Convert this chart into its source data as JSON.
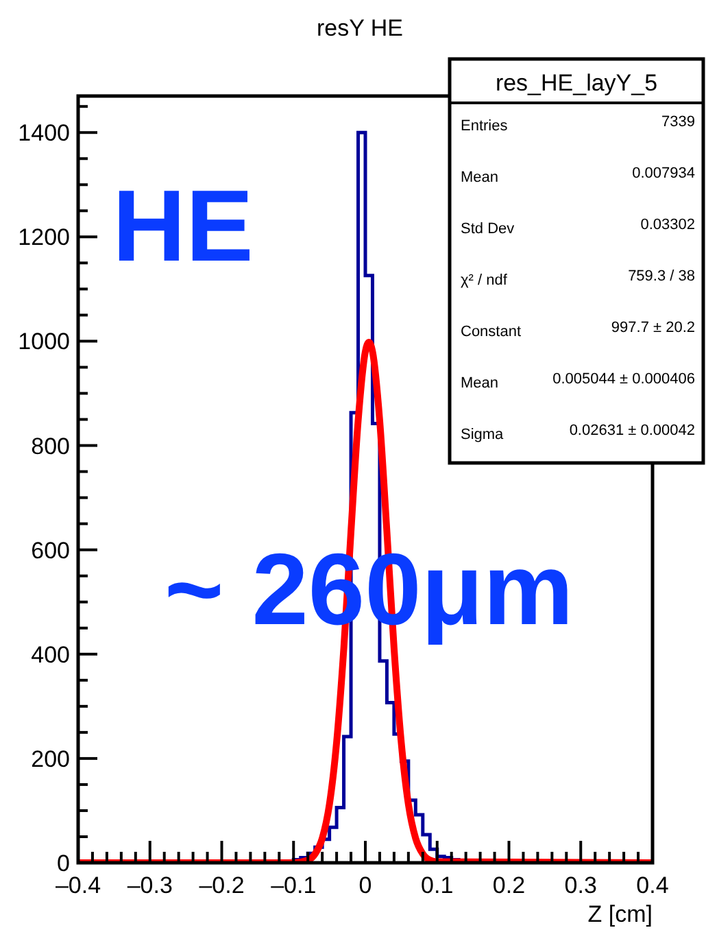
{
  "chart_data": {
    "type": "histogram",
    "title": "resY HE",
    "xlabel": "Z [cm]",
    "xlim": [
      -0.4,
      0.4
    ],
    "ylim": [
      0,
      1470
    ],
    "xticks": [
      {
        "value": -0.4,
        "label": "–0.4"
      },
      {
        "value": -0.38,
        "label": null
      },
      {
        "value": -0.36,
        "label": null
      },
      {
        "value": -0.34,
        "label": null
      },
      {
        "value": -0.32,
        "label": null
      },
      {
        "value": -0.3,
        "label": "–0.3"
      },
      {
        "value": -0.28,
        "label": null
      },
      {
        "value": -0.26,
        "label": null
      },
      {
        "value": -0.24,
        "label": null
      },
      {
        "value": -0.22,
        "label": null
      },
      {
        "value": -0.2,
        "label": "–0.2"
      },
      {
        "value": -0.18,
        "label": null
      },
      {
        "value": -0.16,
        "label": null
      },
      {
        "value": -0.14,
        "label": null
      },
      {
        "value": -0.12,
        "label": null
      },
      {
        "value": -0.1,
        "label": "–0.1"
      },
      {
        "value": -0.08,
        "label": null
      },
      {
        "value": -0.06,
        "label": null
      },
      {
        "value": -0.04,
        "label": null
      },
      {
        "value": -0.02,
        "label": null
      },
      0,
      {
        "value": 0.02,
        "label": null
      },
      {
        "value": 0.04,
        "label": null
      },
      {
        "value": 0.06,
        "label": null
      },
      {
        "value": 0.08,
        "label": null
      },
      0.1,
      {
        "value": 0.12,
        "label": null
      },
      {
        "value": 0.14,
        "label": null
      },
      {
        "value": 0.16,
        "label": null
      },
      {
        "value": 0.18,
        "label": null
      },
      0.2,
      {
        "value": 0.22,
        "label": null
      },
      {
        "value": 0.24,
        "label": null
      },
      {
        "value": 0.26,
        "label": null
      },
      {
        "value": 0.28,
        "label": null
      },
      0.3,
      {
        "value": 0.32,
        "label": null
      },
      {
        "value": 0.34,
        "label": null
      },
      {
        "value": 0.36,
        "label": null
      },
      {
        "value": 0.38,
        "label": null
      },
      0.4
    ],
    "yticks": [
      0,
      {
        "value": 50,
        "label": null
      },
      {
        "value": 100,
        "label": null
      },
      {
        "value": 150,
        "label": null
      },
      200,
      {
        "value": 250,
        "label": null
      },
      {
        "value": 300,
        "label": null
      },
      {
        "value": 350,
        "label": null
      },
      400,
      {
        "value": 450,
        "label": null
      },
      {
        "value": 500,
        "label": null
      },
      {
        "value": 550,
        "label": null
      },
      600,
      {
        "value": 650,
        "label": null
      },
      {
        "value": 700,
        "label": null
      },
      {
        "value": 750,
        "label": null
      },
      800,
      {
        "value": 850,
        "label": null
      },
      {
        "value": 900,
        "label": null
      },
      {
        "value": 950,
        "label": null
      },
      1000,
      {
        "value": 1050,
        "label": null
      },
      {
        "value": 1100,
        "label": null
      },
      {
        "value": 1150,
        "label": null
      },
      1200,
      {
        "value": 1250,
        "label": null
      },
      {
        "value": 1300,
        "label": null
      },
      {
        "value": 1350,
        "label": null
      },
      1400,
      {
        "value": 1450,
        "label": null
      }
    ],
    "series": [
      {
        "color": "#000099",
        "bins": [
          -0.13,
          -0.12,
          -0.11,
          -0.1,
          -0.09,
          -0.08,
          -0.07,
          -0.06,
          -0.05,
          -0.04,
          -0.03,
          -0.02,
          -0.01,
          0,
          0.01,
          0.02,
          0.03,
          0.04,
          0.05,
          0.06,
          0.07,
          0.08,
          0.09,
          0.1,
          0.11,
          0.12,
          0.13,
          0.14,
          0.15,
          0.16
        ],
        "values": [
          1,
          2,
          3,
          6,
          10,
          18,
          30,
          45,
          68,
          106,
          242,
          863,
          1400,
          1126,
          842,
          387,
          307,
          247,
          195,
          120,
          92,
          54,
          26,
          12,
          10,
          6,
          4,
          2,
          1
        ]
      },
      {
        "type": "line",
        "color": "#ff0000",
        "x": [
          -0.4,
          -0.1,
          -0.08,
          -0.07,
          -0.06,
          -0.05,
          -0.04,
          -0.03,
          -0.02,
          -0.01,
          0,
          0.005,
          0.01,
          0.02,
          0.03,
          0.04,
          0.05,
          0.06,
          0.07,
          0.08,
          0.09,
          0.1,
          0.4
        ],
        "values": [
          0,
          0,
          5,
          17,
          47,
          112,
          231,
          411,
          635,
          848,
          980,
          998,
          980,
          848,
          635,
          411,
          231,
          112,
          47,
          17,
          5,
          2,
          0
        ]
      }
    ],
    "annotations": [
      "HE",
      "~ 260μm",
      "res_HE_layY_5",
      "Entries",
      "7339",
      "Mean",
      "0.007934",
      "Std Dev",
      "0.03302",
      "χ² / ndf",
      "759.3 / 38",
      "Constant",
      "997.7 ± 20.2",
      "Mean",
      "0.005044 ± 0.000406",
      "Sigma",
      "0.02631 ± 0.00042"
    ]
  }
}
